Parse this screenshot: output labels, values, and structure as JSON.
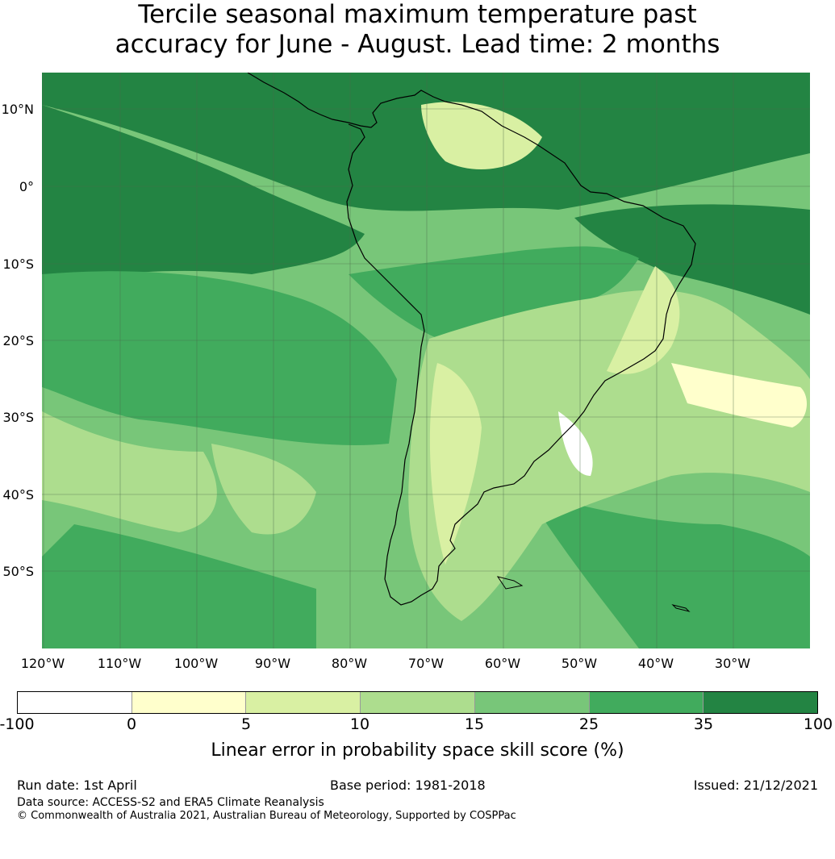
{
  "title_line1": "Tercile seasonal maximum temperature past",
  "title_line2": "accuracy for June - August. Lead time: 2 months",
  "lat_labels": [
    "10°N",
    "0°",
    "10°S",
    "20°S",
    "30°S",
    "40°S",
    "50°S"
  ],
  "lon_labels": [
    "120°W",
    "110°W",
    "100°W",
    "90°W",
    "80°W",
    "70°W",
    "60°W",
    "50°W",
    "40°W",
    "30°W"
  ],
  "colorbar": {
    "ticks": [
      "-100",
      "0",
      "5",
      "10",
      "15",
      "25",
      "35",
      "100"
    ],
    "colors": [
      "#ffffff",
      "#ffffcc",
      "#d9f0a3",
      "#addd8e",
      "#78c679",
      "#41ab5d",
      "#238443"
    ],
    "label": "Linear error in probability space skill score (%)"
  },
  "footer": {
    "run_date": "Run date: 1st April",
    "base_period": "Base period: 1981-2018",
    "issued": "Issued: 21/12/2021",
    "data_source": "Data source: ACCESS-S2 and ERA5 Climate Reanalysis",
    "copyright": "© Commonwealth of Australia 2021, Australian Bureau of Meteorology, Supported by COSPPac"
  }
}
